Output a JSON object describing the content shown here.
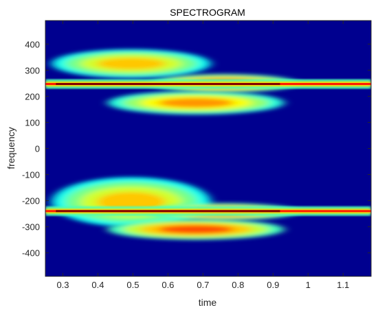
{
  "chart_data": {
    "type": "heatmap",
    "title": "SPECTROGRAM",
    "xlabel": "time",
    "ylabel": "frequency",
    "xlim": [
      0.25,
      1.18
    ],
    "ylim": [
      -490,
      490
    ],
    "xticks": [
      0.3,
      0.4,
      0.5,
      0.6,
      0.7,
      0.8,
      0.9,
      1,
      1.1
    ],
    "xtick_labels": [
      "0.3",
      "0.4",
      "0.5",
      "0.6",
      "0.7",
      "0.8",
      "0.9",
      "1",
      "1.1"
    ],
    "yticks": [
      400,
      300,
      200,
      100,
      0,
      -100,
      -200,
      -300,
      -400
    ],
    "ytick_labels": [
      "400",
      "300",
      "200",
      "100",
      "0",
      "-100",
      "-200",
      "-300",
      "-400"
    ],
    "colormap": "jet",
    "background_color": "#00008f",
    "grid": false,
    "blobs": [
      {
        "t_start": 0.28,
        "t_end": 0.71,
        "f_low": 270,
        "f_high": 380,
        "level": 0.5
      },
      {
        "t_start": 0.44,
        "t_end": 0.92,
        "f_low": 130,
        "f_high": 220,
        "level": 0.55
      },
      {
        "t_start": 0.56,
        "t_end": 0.96,
        "f_low": 215,
        "f_high": 285,
        "level": 0.62
      },
      {
        "t_start": 0.28,
        "t_end": 0.71,
        "f_low": -300,
        "f_high": -110,
        "level": 0.5
      },
      {
        "t_start": 0.44,
        "t_end": 0.92,
        "f_low": -350,
        "f_high": -270,
        "level": 0.62
      },
      {
        "t_start": 0.56,
        "t_end": 0.96,
        "f_low": -275,
        "f_high": -210,
        "level": 0.6
      }
    ],
    "lines": [
      {
        "t_start": 0.25,
        "t_end": 1.18,
        "f": 247,
        "level": 1.0
      },
      {
        "t_start": 0.25,
        "t_end": 1.18,
        "f": -240,
        "level": 1.0
      }
    ]
  }
}
